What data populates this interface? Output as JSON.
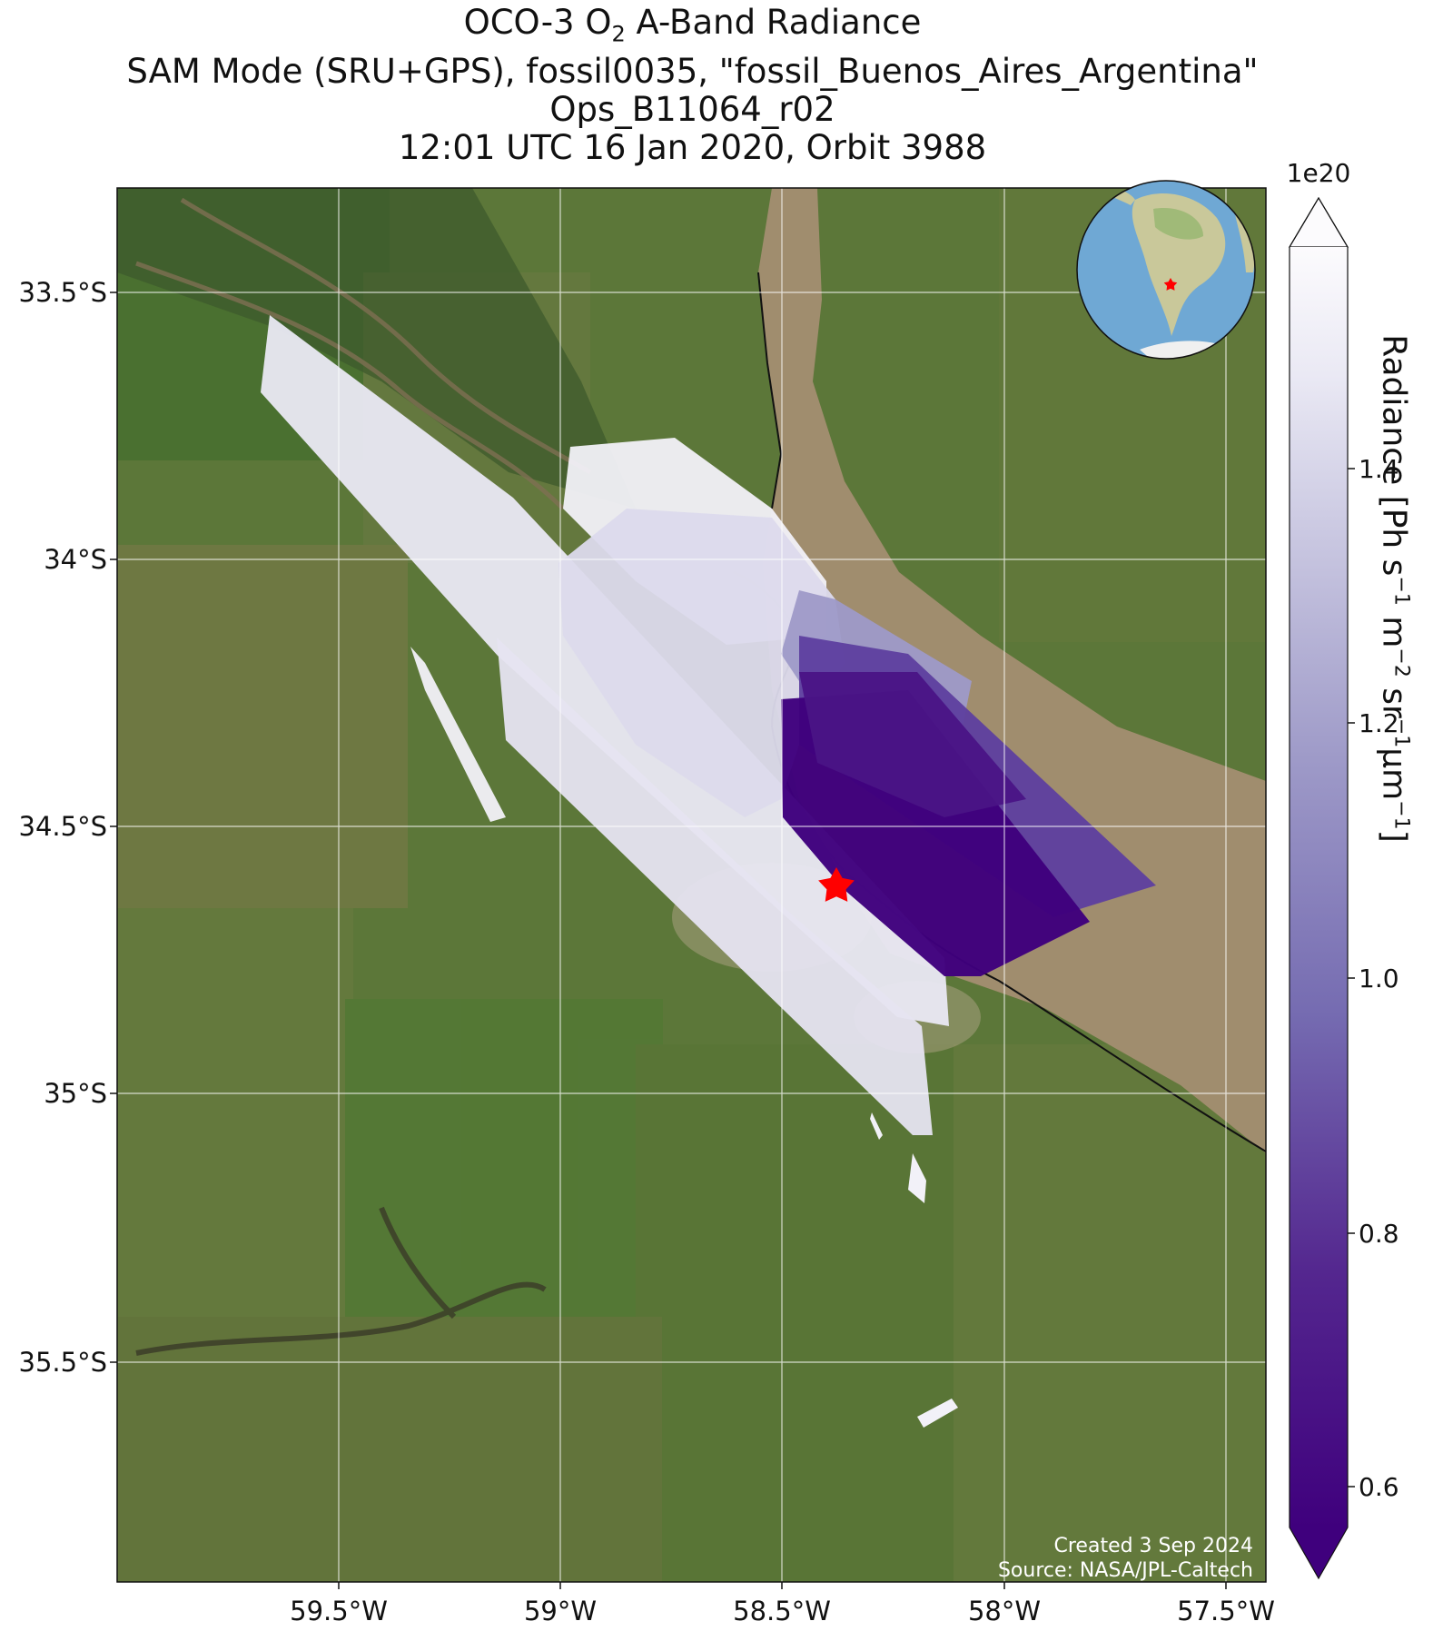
{
  "title": {
    "line1_pre": "OCO-3 O",
    "line1_sub": "2",
    "line1_post": " A-Band Radiance",
    "line2": "SAM Mode (SRU+GPS), fossil0035, \"fossil_Buenos_Aires_Argentina\"",
    "line3": "Ops_B11064_r02",
    "line4": "12:01 UTC 16 Jan 2020, Orbit 3988"
  },
  "axes": {
    "x_ticks": [
      "59.5°W",
      "59°W",
      "58.5°W",
      "58°W",
      "57.5°W"
    ],
    "y_ticks": [
      "33.5°S",
      "34°S",
      "34.5°S",
      "35°S",
      "35.5°S"
    ],
    "lon_range": [
      -60.0,
      -57.4
    ],
    "lat_range": [
      -35.92,
      -33.3
    ],
    "gridlines": true
  },
  "colorbar": {
    "exponent": "1e20",
    "ticks": [
      "1.4",
      "1.2",
      "1.0",
      "0.8",
      "0.6"
    ],
    "range": [
      0.55,
      1.6
    ],
    "colormap": "Purples_r",
    "label_parts": [
      "Radiance [Ph s",
      "−1",
      " m",
      "−2",
      " sr",
      "−1",
      "μm",
      "−1",
      "]"
    ]
  },
  "credits": {
    "created": "Created 3 Sep 2024",
    "source": "Source: NASA/JPL-Caltech"
  },
  "target": {
    "name": "fossil_Buenos_Aires_Argentina",
    "lon": -58.38,
    "lat": -34.61,
    "color": "#ff0000"
  },
  "inset_globe": {
    "ocean_color": "#6fa8d4",
    "land_color": "#c9c89a",
    "marker_color": "#ff0000"
  },
  "colors": {
    "land_base": "#5e7a3a",
    "river_water": "#a08d6e",
    "darkest_radiance": "#3f007d",
    "brightest_radiance": "#fcfbfd"
  }
}
